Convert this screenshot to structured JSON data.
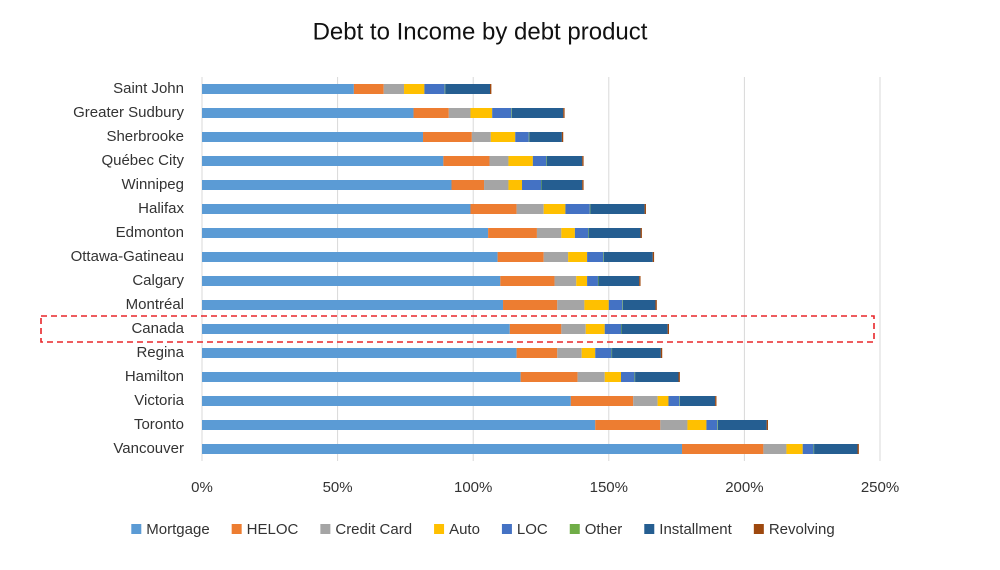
{
  "chart_data": {
    "type": "stacked-bar-horizontal",
    "title": "Debt to Income by debt product",
    "categories": [
      "Saint John",
      "Greater Sudbury",
      "Sherbrooke",
      "Québec City",
      "Winnipeg",
      "Halifax",
      "Edmonton",
      "Ottawa-Gatineau",
      "Calgary",
      "Montréal",
      "Canada",
      "Regina",
      "Hamilton",
      "Victoria",
      "Toronto",
      "Vancouver"
    ],
    "highlight": "Canada",
    "series": [
      {
        "name": "Mortgage",
        "color": "#5b9bd5",
        "values": [
          56,
          78,
          81.5,
          89,
          92,
          99,
          105.5,
          109,
          110,
          111,
          113.5,
          116,
          117.5,
          136,
          145,
          177
        ]
      },
      {
        "name": "HELOC",
        "color": "#ed7d31",
        "values": [
          11,
          13,
          18,
          17,
          12,
          17,
          18,
          17,
          20,
          20,
          19,
          15,
          21,
          23,
          24,
          30
        ]
      },
      {
        "name": "Credit Card",
        "color": "#a5a5a5",
        "values": [
          7.5,
          8,
          7,
          7,
          9,
          10,
          9,
          9,
          8,
          10,
          9,
          9,
          10,
          9,
          10,
          8.5
        ]
      },
      {
        "name": "Auto",
        "color": "#ffc000",
        "values": [
          7.5,
          8,
          9,
          9,
          5,
          8,
          5,
          7,
          4,
          9,
          7,
          5,
          6,
          4,
          7,
          6
        ]
      },
      {
        "name": "LOC",
        "color": "#4472c4",
        "values": [
          7.5,
          7,
          5,
          5,
          7,
          9,
          5,
          6,
          4,
          5,
          6,
          6,
          5,
          4,
          4,
          4
        ]
      },
      {
        "name": "Other",
        "color": "#70ad47",
        "values": [
          0.2,
          0.2,
          0.2,
          0.2,
          0.2,
          0.2,
          0.2,
          0.2,
          0.2,
          0.2,
          0.2,
          0.2,
          0.2,
          0.2,
          0.2,
          0.2
        ]
      },
      {
        "name": "Installment",
        "color": "#255e91",
        "values": [
          16.5,
          19,
          12,
          13,
          15,
          20,
          19,
          18,
          15,
          12,
          17,
          18,
          16,
          13,
          18,
          16
        ]
      },
      {
        "name": "Revolving",
        "color": "#9e480e",
        "values": [
          0.5,
          0.5,
          0.5,
          0.5,
          0.5,
          0.5,
          0.5,
          0.5,
          0.5,
          0.5,
          0.5,
          0.5,
          0.5,
          0.5,
          0.5,
          0.5
        ]
      }
    ],
    "xlim": [
      0,
      250
    ],
    "xticks": [
      {
        "value": 0,
        "label": "0%"
      },
      {
        "value": 50,
        "label": "50%"
      },
      {
        "value": 100,
        "label": "100%"
      },
      {
        "value": 150,
        "label": "150%"
      },
      {
        "value": 200,
        "label": "200%"
      },
      {
        "value": 250,
        "label": "250%"
      }
    ],
    "grid": true
  }
}
